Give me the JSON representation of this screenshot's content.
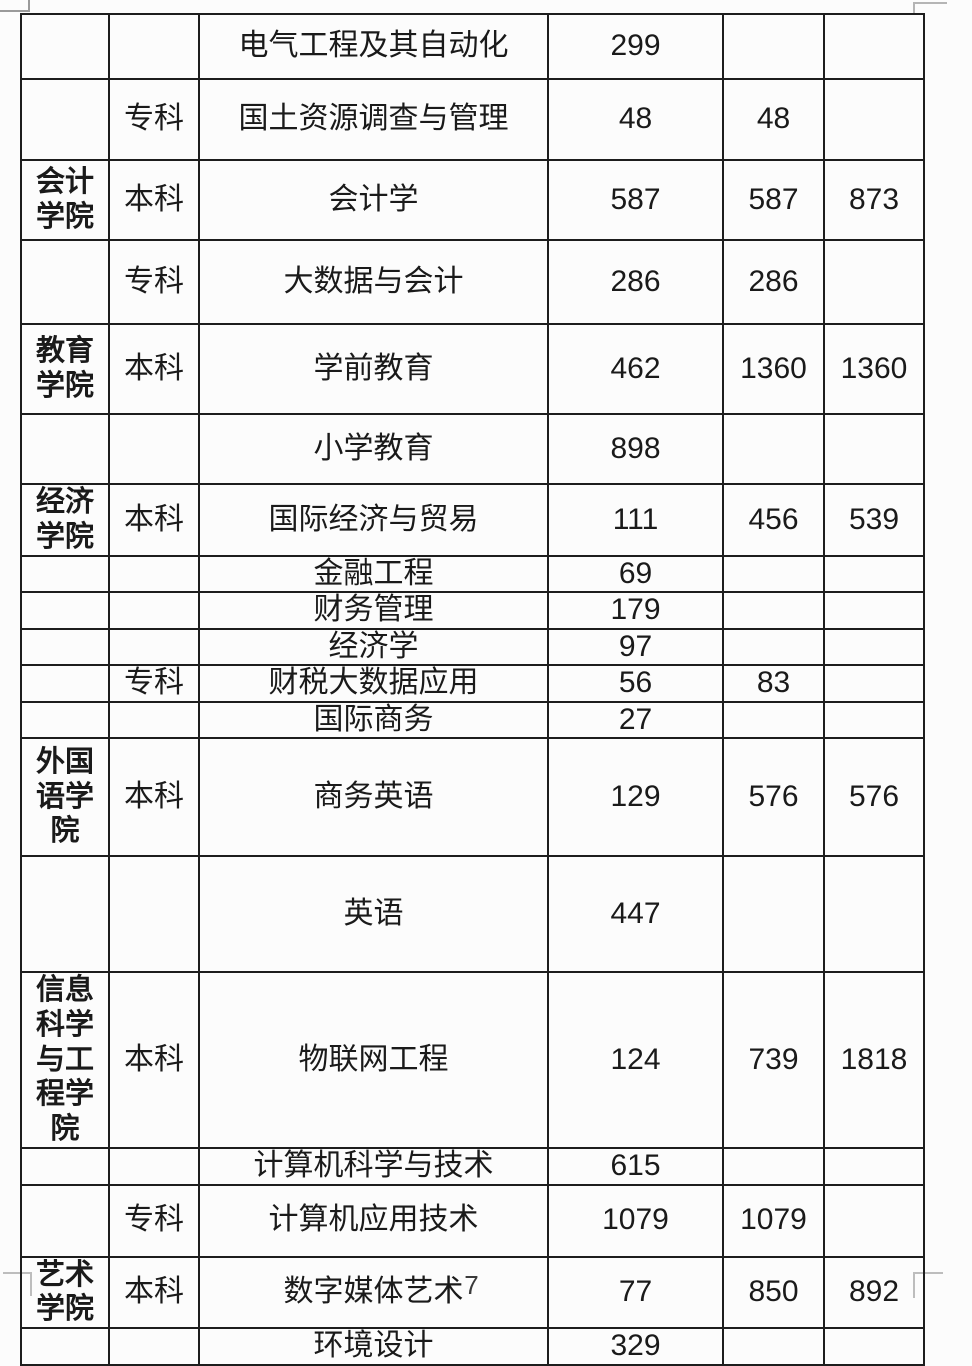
{
  "page": {
    "number": "7",
    "background_color": "#fcfcfc",
    "text_color": "#1a1a1a",
    "border_color": "#1d1d1d"
  },
  "table": {
    "rows": [
      {
        "college": "",
        "level": "",
        "major": "电气工程及其自动化",
        "nums": [
          "299",
          "",
          ""
        ]
      },
      {
        "college": "",
        "level": "专科",
        "major": "国土资源调查与管理",
        "nums": [
          "48",
          "48",
          ""
        ]
      },
      {
        "college": "会计学院",
        "level": "本科",
        "major": "会计学",
        "nums": [
          "587",
          "587",
          "873"
        ]
      },
      {
        "college": "",
        "level": "专科",
        "major": "大数据与会计",
        "nums": [
          "286",
          "286",
          ""
        ]
      },
      {
        "college": "教育学院",
        "level": "本科",
        "major": "学前教育",
        "nums": [
          "462",
          "1360",
          "1360"
        ]
      },
      {
        "college": "",
        "level": "",
        "major": "小学教育",
        "nums": [
          "898",
          "",
          ""
        ]
      },
      {
        "college": "经济学院",
        "level": "本科",
        "major": "国际经济与贸易",
        "nums": [
          "111",
          "456",
          "539"
        ]
      },
      {
        "college": "",
        "level": "",
        "major": "金融工程",
        "nums": [
          "69",
          "",
          ""
        ]
      },
      {
        "college": "",
        "level": "",
        "major": "财务管理",
        "nums": [
          "179",
          "",
          ""
        ]
      },
      {
        "college": "",
        "level": "",
        "major": "经济学",
        "nums": [
          "97",
          "",
          ""
        ]
      },
      {
        "college": "",
        "level": "专科",
        "major": "财税大数据应用",
        "nums": [
          "56",
          "83",
          ""
        ]
      },
      {
        "college": "",
        "level": "",
        "major": "国际商务",
        "nums": [
          "27",
          "",
          ""
        ]
      },
      {
        "college": "外国语学院",
        "level": "本科",
        "major": "商务英语",
        "nums": [
          "129",
          "576",
          "576"
        ]
      },
      {
        "college": "",
        "level": "",
        "major": "英语",
        "nums": [
          "447",
          "",
          ""
        ]
      },
      {
        "college": "信息科学与工程学院",
        "level": "本科",
        "major": "物联网工程",
        "nums": [
          "124",
          "739",
          "1818"
        ]
      },
      {
        "college": "",
        "level": "",
        "major": "计算机科学与技术",
        "nums": [
          "615",
          "",
          ""
        ]
      },
      {
        "college": "",
        "level": "专科",
        "major": "计算机应用技术",
        "nums": [
          "1079",
          "1079",
          ""
        ]
      },
      {
        "college": "艺术学院",
        "level": "本科",
        "major": "数字媒体艺术",
        "nums": [
          "77",
          "850",
          "892"
        ]
      },
      {
        "college": "",
        "level": "",
        "major": "环境设计",
        "nums": [
          "329",
          "",
          ""
        ]
      }
    ]
  }
}
